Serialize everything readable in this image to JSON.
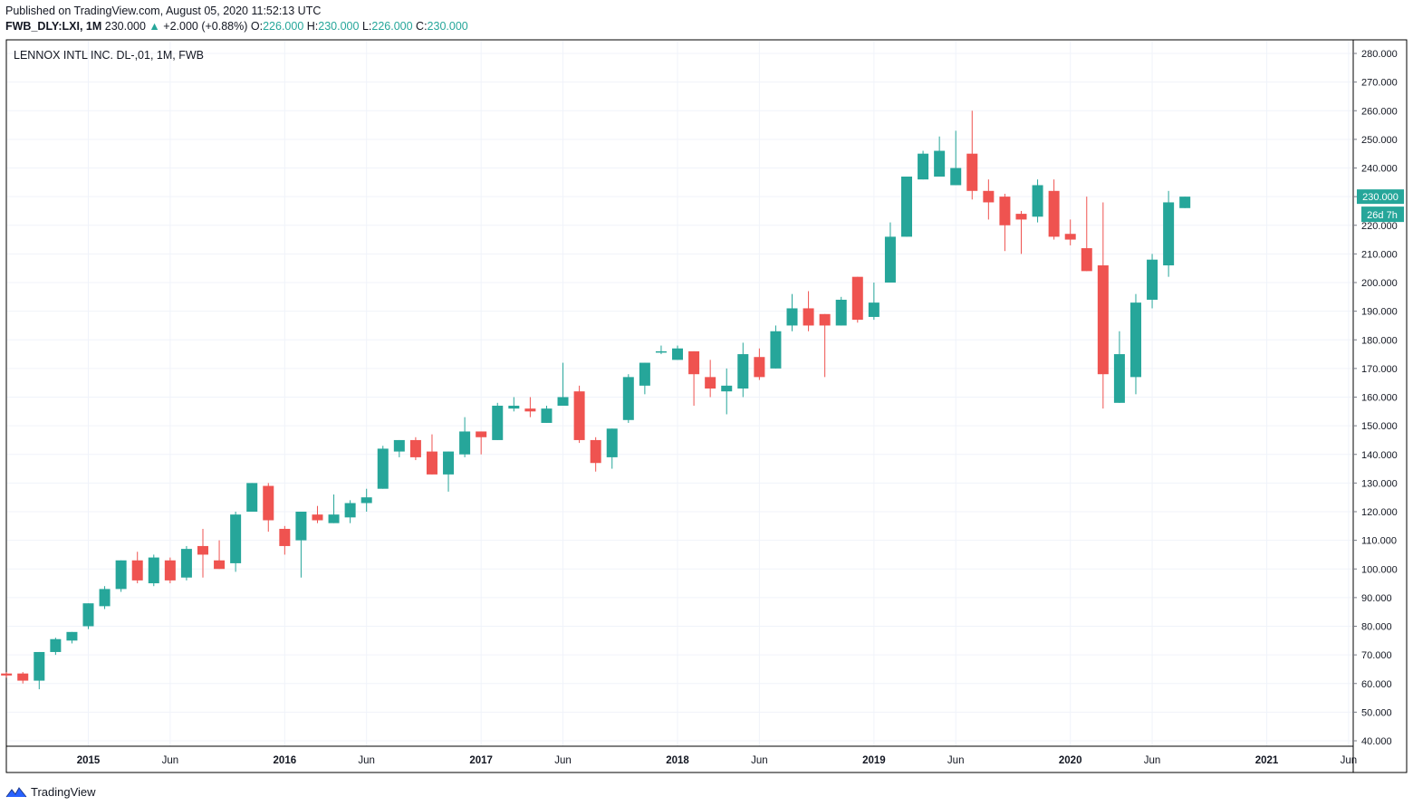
{
  "header": {
    "published": "Published on TradingView.com, August 05, 2020 11:52:13 UTC",
    "symbol": "FWB_DLY:LXI, 1M",
    "last": "230.000",
    "arrow": "▲",
    "change": "+2.000 (+0.88%)",
    "open_label": "O:",
    "open": "226.000",
    "high_label": "H:",
    "high": "230.000",
    "low_label": "L:",
    "low": "226.000",
    "close_label": "C:",
    "close": "230.000"
  },
  "footer": {
    "brand": "TradingView",
    "icon": "tradingview-logo-icon"
  },
  "colors": {
    "up": "#26a69a",
    "down": "#ef5350",
    "grid": "#f0f3fa",
    "axis": "#787b86",
    "text": "#131722"
  },
  "chart_data": {
    "type": "candlestick",
    "title": "LENNOX INTL INC. DL-,01, 1M, FWB",
    "price_label": "230.000",
    "countdown_label": "26d 7h",
    "ylim": [
      40,
      280
    ],
    "y_ticks": [
      "280.000",
      "270.000",
      "260.000",
      "250.000",
      "240.000",
      "230.000",
      "220.000",
      "210.000",
      "200.000",
      "190.000",
      "180.000",
      "170.000",
      "160.000",
      "150.000",
      "140.000",
      "130.000",
      "120.000",
      "110.000",
      "100.000",
      "90.000",
      "80.000",
      "70.000",
      "60.000",
      "50.000",
      "40.000"
    ],
    "x_ticks": [
      {
        "label": "2015",
        "bold": true,
        "month": "2015-01"
      },
      {
        "label": "Jun",
        "bold": false,
        "month": "2015-06"
      },
      {
        "label": "2016",
        "bold": true,
        "month": "2016-01"
      },
      {
        "label": "Jun",
        "bold": false,
        "month": "2016-06"
      },
      {
        "label": "2017",
        "bold": true,
        "month": "2017-01"
      },
      {
        "label": "Jun",
        "bold": false,
        "month": "2017-06"
      },
      {
        "label": "2018",
        "bold": true,
        "month": "2018-01"
      },
      {
        "label": "Jun",
        "bold": false,
        "month": "2018-06"
      },
      {
        "label": "2019",
        "bold": true,
        "month": "2019-01"
      },
      {
        "label": "Jun",
        "bold": false,
        "month": "2019-06"
      },
      {
        "label": "2020",
        "bold": true,
        "month": "2020-01"
      },
      {
        "label": "Jun",
        "bold": false,
        "month": "2020-06"
      },
      {
        "label": "2021",
        "bold": true,
        "month": "2021-01"
      },
      {
        "label": "Jun",
        "bold": false,
        "month": "2021-06"
      }
    ],
    "candles": [
      {
        "date": "2014-08",
        "o": 63.5,
        "h": 64.0,
        "l": 62.0,
        "c": 62.8
      },
      {
        "date": "2014-09",
        "o": 63.5,
        "h": 64.0,
        "l": 60.0,
        "c": 61.0
      },
      {
        "date": "2014-10",
        "o": 61.0,
        "h": 71.0,
        "l": 58.0,
        "c": 71.0
      },
      {
        "date": "2014-11",
        "o": 71.0,
        "h": 76.0,
        "l": 70.0,
        "c": 75.5
      },
      {
        "date": "2014-12",
        "o": 75.0,
        "h": 78.0,
        "l": 74.0,
        "c": 78.0
      },
      {
        "date": "2015-01",
        "o": 80.0,
        "h": 88.0,
        "l": 79.0,
        "c": 88.0
      },
      {
        "date": "2015-02",
        "o": 87.0,
        "h": 94.0,
        "l": 86.0,
        "c": 93.0
      },
      {
        "date": "2015-03",
        "o": 93.0,
        "h": 103.0,
        "l": 92.0,
        "c": 103.0
      },
      {
        "date": "2015-04",
        "o": 103.0,
        "h": 106.0,
        "l": 95.0,
        "c": 96.0
      },
      {
        "date": "2015-05",
        "o": 95.0,
        "h": 105.0,
        "l": 94.0,
        "c": 104.0
      },
      {
        "date": "2015-06",
        "o": 103.0,
        "h": 104.0,
        "l": 95.0,
        "c": 96.0
      },
      {
        "date": "2015-07",
        "o": 97.0,
        "h": 108.0,
        "l": 96.0,
        "c": 107.0
      },
      {
        "date": "2015-08",
        "o": 108.0,
        "h": 114.0,
        "l": 97.0,
        "c": 105.0
      },
      {
        "date": "2015-09",
        "o": 103.0,
        "h": 110.0,
        "l": 100.0,
        "c": 100.0
      },
      {
        "date": "2015-10",
        "o": 102.0,
        "h": 120.0,
        "l": 99.0,
        "c": 119.0
      },
      {
        "date": "2015-11",
        "o": 120.0,
        "h": 130.0,
        "l": 120.0,
        "c": 130.0
      },
      {
        "date": "2015-12",
        "o": 129.0,
        "h": 130.0,
        "l": 113.0,
        "c": 117.0
      },
      {
        "date": "2016-01",
        "o": 114.0,
        "h": 115.0,
        "l": 105.0,
        "c": 108.0
      },
      {
        "date": "2016-02",
        "o": 110.0,
        "h": 120.0,
        "l": 97.0,
        "c": 120.0
      },
      {
        "date": "2016-03",
        "o": 119.0,
        "h": 122.0,
        "l": 116.0,
        "c": 117.0
      },
      {
        "date": "2016-04",
        "o": 116.0,
        "h": 126.0,
        "l": 116.0,
        "c": 119.0
      },
      {
        "date": "2016-05",
        "o": 118.0,
        "h": 124.0,
        "l": 116.0,
        "c": 123.0
      },
      {
        "date": "2016-06",
        "o": 123.0,
        "h": 128.0,
        "l": 120.0,
        "c": 125.0
      },
      {
        "date": "2016-07",
        "o": 128.0,
        "h": 143.0,
        "l": 128.0,
        "c": 142.0
      },
      {
        "date": "2016-08",
        "o": 141.0,
        "h": 145.0,
        "l": 139.0,
        "c": 145.0
      },
      {
        "date": "2016-09",
        "o": 145.0,
        "h": 146.0,
        "l": 138.0,
        "c": 139.0
      },
      {
        "date": "2016-10",
        "o": 141.0,
        "h": 147.0,
        "l": 133.0,
        "c": 133.0
      },
      {
        "date": "2016-11",
        "o": 133.0,
        "h": 141.0,
        "l": 127.0,
        "c": 141.0
      },
      {
        "date": "2016-12",
        "o": 140.0,
        "h": 153.0,
        "l": 139.0,
        "c": 148.0
      },
      {
        "date": "2017-01",
        "o": 148.0,
        "h": 148.0,
        "l": 140.0,
        "c": 146.0
      },
      {
        "date": "2017-02",
        "o": 145.0,
        "h": 158.0,
        "l": 145.0,
        "c": 157.0
      },
      {
        "date": "2017-03",
        "o": 156.0,
        "h": 160.0,
        "l": 155.0,
        "c": 157.0
      },
      {
        "date": "2017-04",
        "o": 156.0,
        "h": 160.0,
        "l": 153.0,
        "c": 155.0
      },
      {
        "date": "2017-05",
        "o": 151.0,
        "h": 157.0,
        "l": 151.0,
        "c": 156.0
      },
      {
        "date": "2017-06",
        "o": 157.0,
        "h": 172.0,
        "l": 157.0,
        "c": 160.0
      },
      {
        "date": "2017-07",
        "o": 162.0,
        "h": 164.0,
        "l": 144.0,
        "c": 145.0
      },
      {
        "date": "2017-08",
        "o": 145.0,
        "h": 146.0,
        "l": 134.0,
        "c": 137.0
      },
      {
        "date": "2017-09",
        "o": 139.0,
        "h": 149.0,
        "l": 135.0,
        "c": 149.0
      },
      {
        "date": "2017-10",
        "o": 152.0,
        "h": 168.0,
        "l": 151.0,
        "c": 167.0
      },
      {
        "date": "2017-11",
        "o": 164.0,
        "h": 172.0,
        "l": 161.0,
        "c": 172.0
      },
      {
        "date": "2017-12",
        "o": 176.0,
        "h": 178.0,
        "l": 175.0,
        "c": 176.0
      },
      {
        "date": "2018-01",
        "o": 173.0,
        "h": 178.0,
        "l": 173.0,
        "c": 177.0
      },
      {
        "date": "2018-02",
        "o": 176.0,
        "h": 176.0,
        "l": 157.0,
        "c": 168.0
      },
      {
        "date": "2018-03",
        "o": 167.0,
        "h": 173.0,
        "l": 160.0,
        "c": 163.0
      },
      {
        "date": "2018-04",
        "o": 162.0,
        "h": 170.0,
        "l": 154.0,
        "c": 164.0
      },
      {
        "date": "2018-05",
        "o": 163.0,
        "h": 179.0,
        "l": 160.0,
        "c": 175.0
      },
      {
        "date": "2018-06",
        "o": 174.0,
        "h": 177.0,
        "l": 166.0,
        "c": 167.0
      },
      {
        "date": "2018-07",
        "o": 170.0,
        "h": 185.0,
        "l": 170.0,
        "c": 183.0
      },
      {
        "date": "2018-08",
        "o": 185.0,
        "h": 196.0,
        "l": 183.0,
        "c": 191.0
      },
      {
        "date": "2018-09",
        "o": 191.0,
        "h": 197.0,
        "l": 183.0,
        "c": 185.0
      },
      {
        "date": "2018-10",
        "o": 189.0,
        "h": 189.0,
        "l": 167.0,
        "c": 185.0
      },
      {
        "date": "2018-11",
        "o": 185.0,
        "h": 195.0,
        "l": 185.0,
        "c": 194.0
      },
      {
        "date": "2018-12",
        "o": 202.0,
        "h": 202.0,
        "l": 186.0,
        "c": 187.0
      },
      {
        "date": "2019-01",
        "o": 188.0,
        "h": 200.0,
        "l": 187.0,
        "c": 193.0
      },
      {
        "date": "2019-02",
        "o": 200.0,
        "h": 221.0,
        "l": 200.0,
        "c": 216.0
      },
      {
        "date": "2019-03",
        "o": 216.0,
        "h": 237.0,
        "l": 216.0,
        "c": 237.0
      },
      {
        "date": "2019-04",
        "o": 236.0,
        "h": 246.0,
        "l": 236.0,
        "c": 245.0
      },
      {
        "date": "2019-05",
        "o": 237.0,
        "h": 251.0,
        "l": 237.0,
        "c": 246.0
      },
      {
        "date": "2019-06",
        "o": 234.0,
        "h": 253.0,
        "l": 234.0,
        "c": 240.0
      },
      {
        "date": "2019-07",
        "o": 245.0,
        "h": 260.0,
        "l": 229.0,
        "c": 232.0
      },
      {
        "date": "2019-08",
        "o": 232.0,
        "h": 236.0,
        "l": 222.0,
        "c": 228.0
      },
      {
        "date": "2019-09",
        "o": 230.0,
        "h": 231.0,
        "l": 211.0,
        "c": 220.0
      },
      {
        "date": "2019-10",
        "o": 224.0,
        "h": 225.0,
        "l": 210.0,
        "c": 222.0
      },
      {
        "date": "2019-11",
        "o": 223.0,
        "h": 236.0,
        "l": 221.0,
        "c": 234.0
      },
      {
        "date": "2019-12",
        "o": 232.0,
        "h": 236.0,
        "l": 215.0,
        "c": 216.0
      },
      {
        "date": "2020-01",
        "o": 217.0,
        "h": 222.0,
        "l": 213.0,
        "c": 215.0
      },
      {
        "date": "2020-02",
        "o": 212.0,
        "h": 230.0,
        "l": 204.0,
        "c": 204.0
      },
      {
        "date": "2020-03",
        "o": 206.0,
        "h": 228.0,
        "l": 156.0,
        "c": 168.0
      },
      {
        "date": "2020-04",
        "o": 158.0,
        "h": 183.0,
        "l": 158.0,
        "c": 175.0
      },
      {
        "date": "2020-05",
        "o": 167.0,
        "h": 196.0,
        "l": 161.0,
        "c": 193.0
      },
      {
        "date": "2020-06",
        "o": 194.0,
        "h": 210.0,
        "l": 191.0,
        "c": 208.0
      },
      {
        "date": "2020-07",
        "o": 206.0,
        "h": 232.0,
        "l": 202.0,
        "c": 228.0
      },
      {
        "date": "2020-08",
        "o": 226.0,
        "h": 230.0,
        "l": 226.0,
        "c": 230.0
      }
    ]
  }
}
